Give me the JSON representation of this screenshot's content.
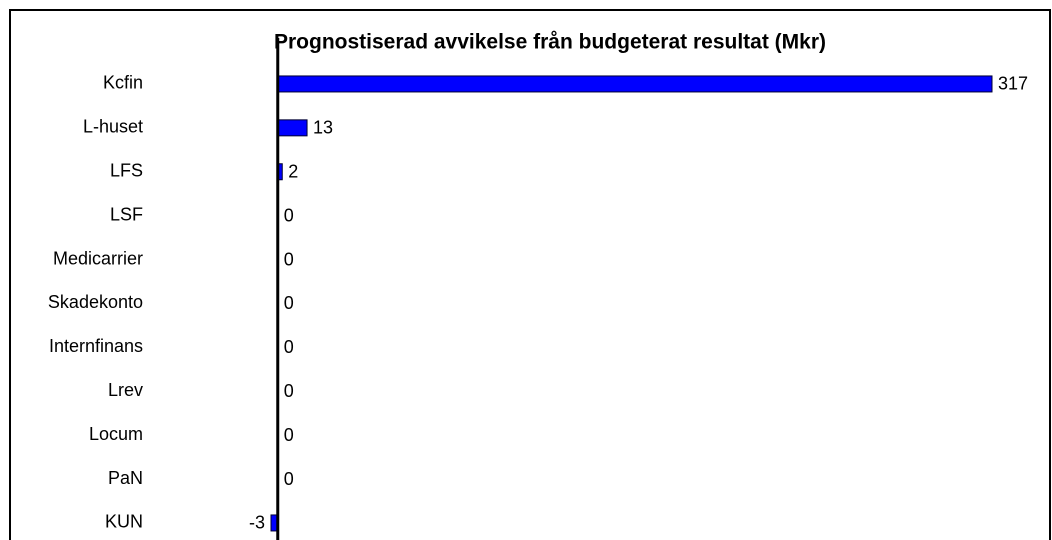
{
  "chart_data": {
    "type": "bar",
    "orientation": "horizontal",
    "title": "Prognostiserad avvikelse från budgeterat resultat (Mkr)",
    "categories": [
      "Kcfin",
      "L-huset",
      "LFS",
      "LSF",
      "Medicarrier",
      "Skadekonto",
      "Internfinans",
      "Lrev",
      "Locum",
      "PaN",
      "KUN"
    ],
    "values": [
      317,
      13,
      2,
      0,
      0,
      0,
      0,
      0,
      0,
      0,
      -3
    ],
    "color": "#0000ff",
    "xlim": [
      -3,
      317
    ]
  }
}
